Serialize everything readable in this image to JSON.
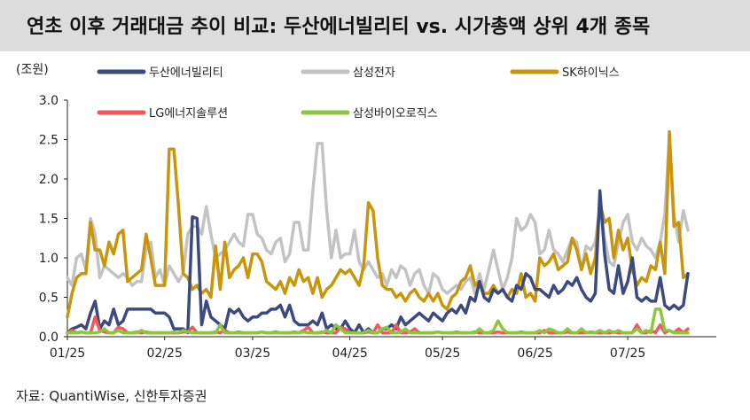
{
  "title": "연초 이후 거래대금 추이 비교: 두산에너빌리티 vs. 시가총액 상위 4개 종목",
  "unit_label": "(조원)",
  "source": "자료: QuantiWise, 신한투자증권",
  "chart_data": {
    "type": "line",
    "ylim": [
      0,
      3.0
    ],
    "y_ticks": [
      "0.0",
      "0.5",
      "1.0",
      "1.5",
      "2.0",
      "2.5",
      "3.0"
    ],
    "x_ticks": [
      "01/25",
      "02/25",
      "03/25",
      "04/25",
      "05/25",
      "06/25",
      "07/25"
    ],
    "n_points": 135,
    "grid": false,
    "legend_position": "top",
    "series": [
      {
        "name": "두산에너빌리티",
        "color": "#3b4a7f",
        "values": [
          0.05,
          0.1,
          0.12,
          0.15,
          0.1,
          0.3,
          0.45,
          0.1,
          0.2,
          0.15,
          0.35,
          0.15,
          0.2,
          0.35,
          0.35,
          0.35,
          0.35,
          0.35,
          0.35,
          0.3,
          0.3,
          0.3,
          0.25,
          0.1,
          0.1,
          0.1,
          0.05,
          1.52,
          1.5,
          0.15,
          0.45,
          0.25,
          0.2,
          0.15,
          0.1,
          0.35,
          0.3,
          0.35,
          0.25,
          0.2,
          0.25,
          0.25,
          0.3,
          0.3,
          0.35,
          0.35,
          0.4,
          0.25,
          0.4,
          0.2,
          0.15,
          0.15,
          0.15,
          0.2,
          0.15,
          0.3,
          0.1,
          0.15,
          0.1,
          0.1,
          0.2,
          0.1,
          0.05,
          0.15,
          0.05,
          0.1,
          0.05,
          0.05,
          0.1,
          0.1,
          0.15,
          0.1,
          0.25,
          0.15,
          0.2,
          0.25,
          0.3,
          0.25,
          0.2,
          0.3,
          0.25,
          0.2,
          0.3,
          0.35,
          0.3,
          0.4,
          0.3,
          0.5,
          0.45,
          0.7,
          0.5,
          0.45,
          0.6,
          0.55,
          0.6,
          0.5,
          0.45,
          0.65,
          0.6,
          0.8,
          0.75,
          0.6,
          0.6,
          0.55,
          0.5,
          0.65,
          0.55,
          0.6,
          0.7,
          0.65,
          0.75,
          0.6,
          0.5,
          0.45,
          0.55,
          1.85,
          1.05,
          0.6,
          0.55,
          0.9,
          0.55,
          0.7,
          1.0,
          0.5,
          0.45,
          0.5,
          0.45,
          0.45,
          0.75,
          0.4,
          0.35,
          0.4,
          0.35,
          0.4,
          0.8
        ]
      },
      {
        "name": "삼성전자",
        "color": "#c3c3c3",
        "values": [
          0.75,
          0.65,
          1.0,
          1.05,
          0.85,
          1.5,
          1.3,
          0.75,
          0.9,
          0.85,
          0.8,
          0.75,
          0.8,
          0.75,
          0.65,
          0.7,
          0.7,
          1.1,
          1.2,
          0.75,
          0.85,
          0.65,
          0.9,
          0.8,
          0.7,
          0.8,
          1.3,
          1.4,
          1.4,
          1.3,
          1.65,
          1.3,
          1.0,
          1.05,
          1.1,
          1.2,
          1.3,
          1.2,
          1.15,
          1.55,
          1.55,
          1.3,
          1.25,
          1.1,
          1.05,
          1.2,
          1.25,
          0.95,
          1.05,
          1.45,
          1.45,
          1.1,
          1.1,
          1.85,
          2.45,
          2.45,
          1.6,
          1.0,
          1.35,
          1.0,
          1.05,
          1.05,
          1.35,
          0.95,
          0.85,
          0.95,
          0.85,
          0.75,
          0.8,
          0.65,
          0.85,
          0.75,
          0.9,
          0.85,
          0.65,
          0.8,
          0.85,
          0.65,
          0.55,
          0.8,
          0.75,
          0.6,
          0.55,
          0.6,
          0.65,
          0.6,
          0.7,
          0.75,
          0.55,
          0.8,
          0.6,
          0.85,
          1.1,
          0.85,
          0.6,
          0.75,
          1.0,
          1.5,
          1.35,
          1.4,
          1.55,
          1.45,
          1.05,
          1.1,
          1.35,
          1.1,
          1.05,
          0.95,
          1.1,
          1.25,
          1.2,
          0.85,
          1.15,
          1.1,
          1.2,
          1.65,
          1.25,
          0.95,
          0.9,
          1.2,
          1.45,
          1.55,
          1.2,
          1.1,
          1.25,
          1.15,
          1.1,
          1.0,
          1.2,
          1.55,
          2.55,
          1.55,
          1.2,
          1.6,
          1.35
        ]
      },
      {
        "name": "SK하이닉스",
        "color": "#c8960c",
        "values": [
          0.25,
          0.55,
          0.75,
          0.8,
          0.8,
          1.45,
          1.1,
          1.1,
          0.9,
          1.2,
          1.05,
          1.3,
          1.35,
          0.7,
          0.75,
          0.8,
          0.85,
          1.3,
          1.0,
          0.65,
          0.65,
          0.65,
          2.38,
          2.38,
          1.65,
          0.8,
          0.75,
          0.6,
          0.65,
          0.55,
          0.6,
          0.5,
          1.15,
          0.6,
          1.2,
          0.75,
          0.85,
          0.9,
          1.0,
          0.75,
          1.05,
          1.05,
          0.95,
          0.7,
          0.65,
          0.6,
          0.7,
          0.55,
          0.75,
          0.65,
          0.85,
          0.7,
          0.75,
          0.55,
          0.75,
          0.5,
          0.6,
          0.65,
          0.75,
          0.85,
          0.8,
          0.85,
          0.75,
          0.65,
          0.9,
          1.7,
          1.6,
          1.0,
          0.65,
          0.6,
          0.6,
          0.5,
          0.55,
          0.45,
          0.55,
          0.6,
          0.5,
          0.45,
          0.55,
          0.45,
          0.55,
          0.4,
          0.35,
          0.5,
          0.55,
          0.7,
          0.75,
          0.9,
          0.65,
          0.7,
          0.55,
          0.55,
          0.65,
          0.55,
          0.6,
          0.5,
          0.6,
          0.55,
          0.8,
          0.5,
          0.55,
          0.45,
          1.0,
          0.9,
          0.95,
          1.05,
          0.85,
          0.9,
          0.95,
          1.25,
          1.1,
          0.85,
          1.05,
          0.8,
          1.0,
          1.7,
          1.45,
          1.5,
          1.0,
          1.35,
          1.1,
          1.25,
          0.85,
          0.65,
          0.75,
          0.7,
          0.9,
          0.85,
          1.2,
          0.8,
          2.6,
          1.4,
          1.45,
          0.75,
          0.8
        ]
      },
      {
        "name": "LG에너지솔루션",
        "color": "#f25a5a",
        "values": [
          0.05,
          0.08,
          0.05,
          0.06,
          0.05,
          0.05,
          0.25,
          0.08,
          0.06,
          0.05,
          0.05,
          0.12,
          0.1,
          0.05,
          0.05,
          0.06,
          0.05,
          0.06,
          0.05,
          0.05,
          0.05,
          0.05,
          0.05,
          0.05,
          0.05,
          0.06,
          0.06,
          0.12,
          0.05,
          0.05,
          0.05,
          0.05,
          0.06,
          0.05,
          0.08,
          0.05,
          0.05,
          0.06,
          0.05,
          0.05,
          0.05,
          0.05,
          0.06,
          0.05,
          0.05,
          0.06,
          0.05,
          0.05,
          0.05,
          0.06,
          0.05,
          0.08,
          0.12,
          0.05,
          0.05,
          0.06,
          0.05,
          0.05,
          0.05,
          0.12,
          0.1,
          0.05,
          0.05,
          0.05,
          0.05,
          0.06,
          0.05,
          0.15,
          0.05,
          0.05,
          0.05,
          0.15,
          0.05,
          0.05,
          0.06,
          0.1,
          0.05,
          0.05,
          0.05,
          0.05,
          0.06,
          0.05,
          0.05,
          0.05,
          0.06,
          0.05,
          0.05,
          0.05,
          0.06,
          0.05,
          0.05,
          0.05,
          0.05,
          0.06,
          0.05,
          0.05,
          0.05,
          0.05,
          0.06,
          0.05,
          0.05,
          0.05,
          0.05,
          0.08,
          0.05,
          0.05,
          0.05,
          0.05,
          0.06,
          0.05,
          0.05,
          0.05,
          0.05,
          0.06,
          0.05,
          0.05,
          0.05,
          0.05,
          0.06,
          0.05,
          0.05,
          0.05,
          0.05,
          0.15,
          0.05,
          0.05,
          0.08,
          0.05,
          0.15,
          0.05,
          0.08,
          0.05,
          0.1,
          0.05,
          0.1
        ]
      },
      {
        "name": "삼성바이오로직스",
        "color": "#8cc63e",
        "values": [
          0.05,
          0.05,
          0.05,
          0.06,
          0.05,
          0.05,
          0.05,
          0.06,
          0.1,
          0.05,
          0.05,
          0.08,
          0.05,
          0.05,
          0.05,
          0.05,
          0.08,
          0.05,
          0.05,
          0.05,
          0.05,
          0.05,
          0.05,
          0.06,
          0.05,
          0.08,
          0.06,
          0.05,
          0.05,
          0.05,
          0.05,
          0.05,
          0.05,
          0.15,
          0.05,
          0.05,
          0.05,
          0.05,
          0.05,
          0.05,
          0.05,
          0.05,
          0.06,
          0.05,
          0.05,
          0.05,
          0.05,
          0.05,
          0.05,
          0.05,
          0.05,
          0.06,
          0.05,
          0.05,
          0.05,
          0.05,
          0.08,
          0.05,
          0.15,
          0.1,
          0.05,
          0.05,
          0.05,
          0.05,
          0.05,
          0.08,
          0.05,
          0.05,
          0.1,
          0.12,
          0.05,
          0.05,
          0.06,
          0.1,
          0.05,
          0.05,
          0.05,
          0.05,
          0.05,
          0.05,
          0.06,
          0.05,
          0.05,
          0.05,
          0.05,
          0.05,
          0.05,
          0.05,
          0.05,
          0.1,
          0.05,
          0.05,
          0.08,
          0.2,
          0.1,
          0.05,
          0.05,
          0.05,
          0.05,
          0.05,
          0.05,
          0.05,
          0.08,
          0.05,
          0.1,
          0.08,
          0.05,
          0.05,
          0.1,
          0.05,
          0.05,
          0.1,
          0.05,
          0.05,
          0.05,
          0.08,
          0.05,
          0.08,
          0.05,
          0.08,
          0.05,
          0.05,
          0.05,
          0.1,
          0.05,
          0.08,
          0.05,
          0.35,
          0.35,
          0.08,
          0.08,
          0.05,
          0.05,
          0.05,
          0.05
        ]
      }
    ]
  }
}
